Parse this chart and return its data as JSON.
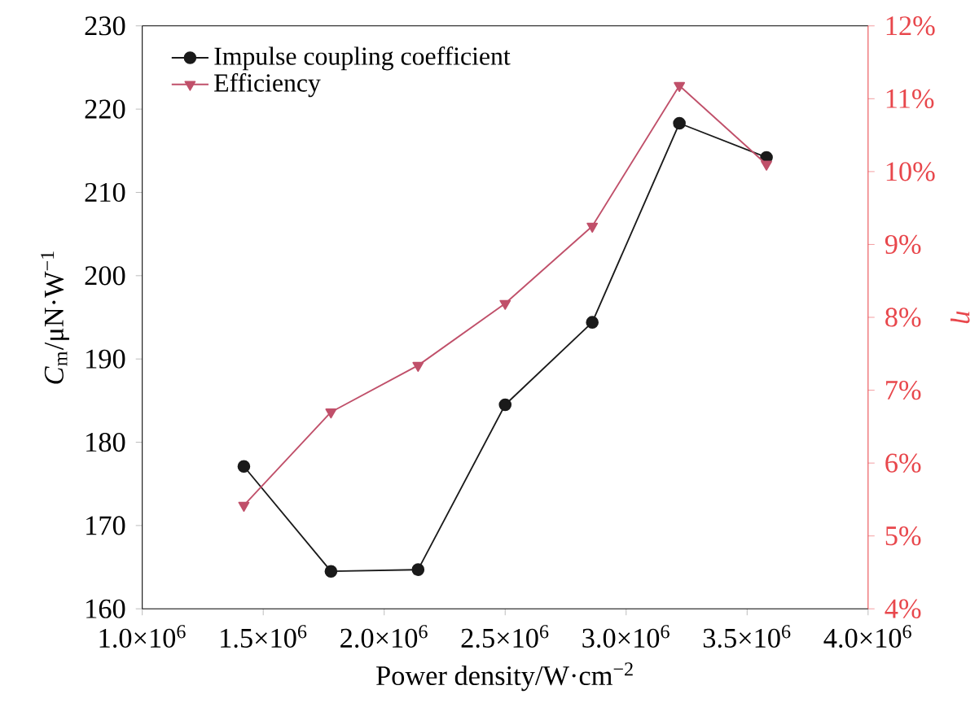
{
  "chart_data": {
    "type": "line",
    "xlabel": "Power density/W·cm$^{−2}$",
    "ylabel": "*C*$_{m}$/μN·W$^{−1}$",
    "y2label": "η",
    "x": [
      1420000.0,
      1780000.0,
      2140000.0,
      2500000.0,
      2860000.0,
      3220000.0,
      3580000.0
    ],
    "xlim": [
      1000000.0,
      4000000.0
    ],
    "xticks": [
      {
        "value": 1000000.0,
        "label": "1.0×10$^{6}$"
      },
      {
        "value": 1500000.0,
        "label": "1.5×10$^{6}$"
      },
      {
        "value": 2000000.0,
        "label": "2.0×10$^{6}$"
      },
      {
        "value": 2500000.0,
        "label": "2.5×10$^{6}$"
      },
      {
        "value": 3000000.0,
        "label": "3.0×10$^{6}$"
      },
      {
        "value": 3500000.0,
        "label": "3.5×10$^{6}$"
      },
      {
        "value": 4000000.0,
        "label": "4.0×10$^{6}$"
      }
    ],
    "ylim": [
      160,
      230
    ],
    "yticks": [
      160,
      170,
      180,
      190,
      200,
      210,
      220,
      230
    ],
    "y2lim": [
      4,
      12
    ],
    "y2ticks": [
      {
        "value": 4,
        "label": "4%"
      },
      {
        "value": 5,
        "label": "5%"
      },
      {
        "value": 6,
        "label": "6%"
      },
      {
        "value": 7,
        "label": "7%"
      },
      {
        "value": 8,
        "label": "8%"
      },
      {
        "value": 9,
        "label": "9%"
      },
      {
        "value": 10,
        "label": "10%"
      },
      {
        "value": 11,
        "label": "11%"
      },
      {
        "value": 12,
        "label": "12%"
      }
    ],
    "legend": "top left",
    "grid": false,
    "series": [
      {
        "name": "Impulse coupling coefficient",
        "color": "#1a1a1a",
        "marker": "circle",
        "values": [
          177.1,
          164.5,
          164.7,
          184.5,
          194.4,
          218.3,
          214.2
        ]
      },
      {
        "name": "Efficiency",
        "color": "#c0506a",
        "marker": "triangle",
        "axis": "y2",
        "values": [
          5.42,
          6.7,
          7.34,
          8.19,
          9.25,
          11.18,
          10.1
        ]
      }
    ]
  }
}
